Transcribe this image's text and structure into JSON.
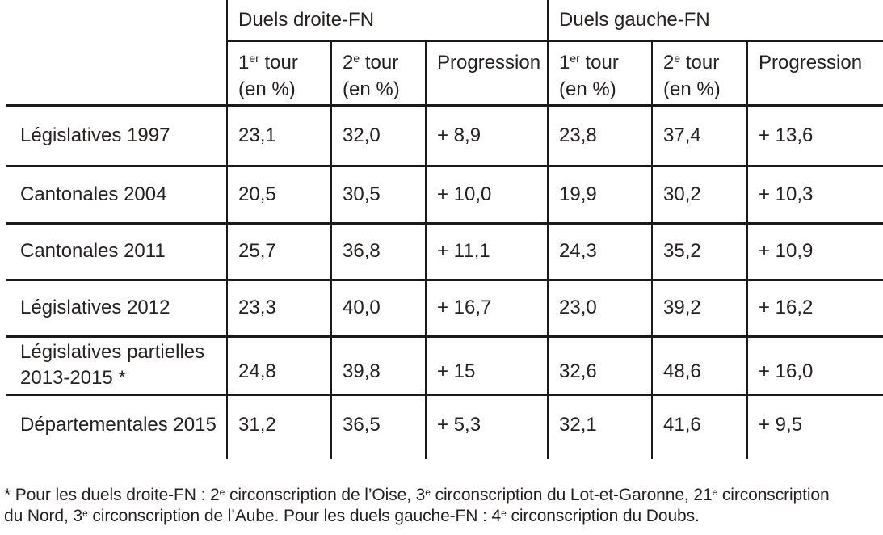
{
  "table": {
    "group_headers": [
      {
        "label": "Duels droite-FN"
      },
      {
        "label": "Duels gauche-FN"
      }
    ],
    "columns": [
      {
        "line1": [
          {
            "t": "1"
          },
          {
            "s": "er"
          },
          {
            "t": " tour"
          }
        ],
        "line2": "(en %)"
      },
      {
        "line1": [
          {
            "t": "2"
          },
          {
            "s": "e"
          },
          {
            "t": " tour"
          }
        ],
        "line2": "(en %)"
      },
      {
        "line1": [
          {
            "t": "Progression"
          }
        ],
        "line2": ""
      },
      {
        "line1": [
          {
            "t": "1"
          },
          {
            "s": "er"
          },
          {
            "t": " tour"
          }
        ],
        "line2": "(en %)"
      },
      {
        "line1": [
          {
            "t": "2"
          },
          {
            "s": "e"
          },
          {
            "t": " tour"
          }
        ],
        "line2": "(en %)"
      },
      {
        "line1": [
          {
            "t": "Progression"
          }
        ],
        "line2": ""
      }
    ],
    "rows": [
      {
        "label": "Législatives 1997",
        "values": [
          "23,1",
          "32,0",
          "+ 8,9",
          "23,8",
          "37,4",
          "+ 13,6"
        ]
      },
      {
        "label": "Cantonales 2004",
        "values": [
          "20,5",
          "30,5",
          "+ 10,0",
          "19,9",
          "30,2",
          "+ 10,3"
        ]
      },
      {
        "label": "Cantonales 2011",
        "values": [
          "25,7",
          "36,8",
          "+ 11,1",
          "24,3",
          "35,2",
          "+ 10,9"
        ]
      },
      {
        "label": "Législatives 2012",
        "values": [
          "23,3",
          "40,0",
          "+ 16,7",
          "23,0",
          "39,2",
          "+ 16,2"
        ]
      },
      {
        "label_lines": [
          "Législatives partielles",
          "2013-2015 *"
        ],
        "values": [
          "24,8",
          "39,8",
          "+ 15",
          "32,6",
          "48,6",
          "+ 16,0"
        ]
      },
      {
        "label": "Départementales 2015",
        "values": [
          "31,2",
          "36,5",
          "+ 5,3",
          "32,1",
          "41,6",
          "+ 9,5"
        ]
      }
    ]
  },
  "footnote": {
    "lines": [
      [
        {
          "t": "* Pour les duels droite-FN : 2"
        },
        {
          "s": "e"
        },
        {
          "t": " circonscription de l’Oise, 3"
        },
        {
          "s": "e"
        },
        {
          "t": " circonscription du Lot-et-Garonne, 21"
        },
        {
          "s": "e"
        },
        {
          "t": " circonscription"
        }
      ],
      [
        {
          "t": "du Nord, 3"
        },
        {
          "s": "e"
        },
        {
          "t": " circonscription de l’Aube. Pour les duels gauche-FN : 4"
        },
        {
          "s": "e"
        },
        {
          "t": " circonscription du Doubs."
        }
      ]
    ]
  }
}
